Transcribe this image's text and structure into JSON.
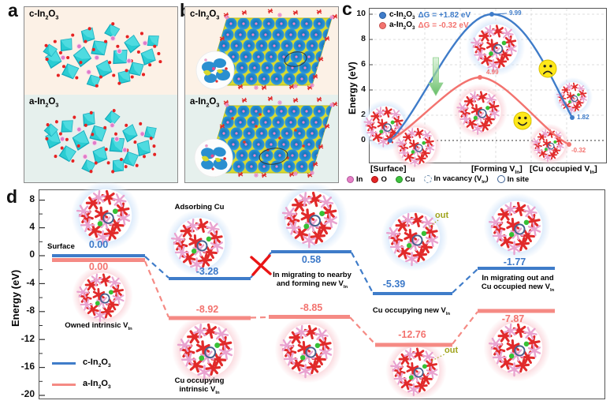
{
  "panels": {
    "a": {
      "tag": "a",
      "top_title_html": "c-In<sub>2</sub>O<sub>3</sub>",
      "bottom_title_html": "a-In<sub>2</sub>O<sub>3</sub>"
    },
    "b": {
      "tag": "b",
      "top_title_html": "c-In<sub>2</sub>O<sub>3</sub>",
      "bottom_title_html": "a-In<sub>2</sub>O<sub>3</sub>"
    },
    "c": {
      "tag": "c",
      "ylabel": "Energy (eV)",
      "yticks": [
        "10",
        "8",
        "6",
        "4",
        "2",
        "0"
      ],
      "legend": [
        {
          "name_html": "c-In<sub>2</sub>O<sub>3</sub>",
          "dg": "ΔG = +1.82 eV",
          "color": "#3f7cc9"
        },
        {
          "name_html": "a-In<sub>2</sub>O<sub>3</sub>",
          "dg": "ΔG = -0.32 eV",
          "color": "#f3736f"
        }
      ],
      "values": {
        "blue_peak": "9.99",
        "red_peak": "4.99",
        "blue_end": "1.82",
        "red_end": "-0.32"
      },
      "xlabels_html": [
        "[Surface]",
        "[Forming V<sub>In</sub>]",
        "[Cu occupied V<sub>In</sub>]"
      ],
      "atom_legend": [
        {
          "label_html": "In"
        },
        {
          "label_html": "O"
        },
        {
          "label_html": "Cu"
        },
        {
          "label_html": "In vacancy (V<sub>In</sub>)"
        },
        {
          "label_html": "In site"
        }
      ]
    },
    "d": {
      "tag": "d",
      "ylabel": "Energy (eV)",
      "yticks": [
        "8",
        "4",
        "0",
        "-4",
        "-8",
        "-12",
        "-16",
        "-20"
      ],
      "legend": [
        {
          "name_html": "c-In<sub>2</sub>O<sub>3</sub>",
          "color": "#3f7cc9"
        },
        {
          "name_html": "a-In<sub>2</sub>O<sub>3</sub>",
          "color": "#f58a84"
        }
      ],
      "blue": [
        "0.00",
        "-3.28",
        "0.58",
        "-5.39",
        "-1.77"
      ],
      "red": [
        "0.00",
        "-8.92",
        "-8.85",
        "-12.76",
        "-7.87"
      ],
      "labels": {
        "surface": "Surface",
        "owned_html": "Owned intrinsic V<sub>In</sub>",
        "adsorbing": "Adsorbing Cu",
        "cu_intrinsic_html": "Cu occupying<br>intrinsic V<sub>In</sub>",
        "in_migrating_html": "In migrating to nearby<br>and forming new V<sub>In</sub>",
        "cu_new_html": "Cu occupying new V<sub>In</sub>",
        "in_out_html": "In migrating out and<br>Cu occupied new V<sub>In</sub>",
        "out": "out"
      }
    }
  },
  "colors": {
    "c_in2o3_blue": "#3f7cc9",
    "a_in2o3_red": "#f3736f",
    "in_atom_pink": "#e57fc5",
    "o_atom_red": "#e42525",
    "cu_atom_green": "#3ec13e",
    "out_olive": "#9fa31b",
    "cream_bg": "#fcf1e6",
    "teal_bg": "#e6f0ed"
  },
  "chart_data": [
    {
      "type": "line",
      "panel": "c",
      "description": "Energy profile for forming In vacancy and Cu occupation",
      "categories": [
        "[Surface]",
        "[Forming VIn]",
        "[Cu occupied VIn]"
      ],
      "series": [
        {
          "name": "c-In2O3",
          "color": "#3f7cc9",
          "values": [
            0.0,
            9.99,
            1.82
          ],
          "barrier_eV": 9.99,
          "delta_G_eV": 1.82
        },
        {
          "name": "a-In2O3",
          "color": "#f3736f",
          "values": [
            0.0,
            4.99,
            -0.32
          ],
          "barrier_eV": 4.99,
          "delta_G_eV": -0.32
        }
      ],
      "ylabel": "Energy (eV)",
      "yticks": [
        0,
        2,
        4,
        6,
        8,
        10
      ],
      "ylim": [
        -1.6,
        10.8
      ],
      "grid": true,
      "legend_position": "top-left",
      "annotations": [
        "9.99",
        "4.99",
        "1.82",
        "-0.32",
        "ΔG = +1.82 eV",
        "ΔG = -0.32 eV"
      ]
    },
    {
      "type": "line",
      "panel": "d",
      "subtype": "stepped-energy-pathway",
      "ylabel": "Energy (eV)",
      "yticks": [
        8,
        4,
        0,
        -4,
        -8,
        -12,
        -16,
        -20
      ],
      "ylim": [
        -21,
        9
      ],
      "series": [
        {
          "name": "c-In2O3",
          "color": "#3f7cc9",
          "values": [
            0.0,
            -3.28,
            0.58,
            -5.39,
            -1.77
          ],
          "step_labels": [
            "Surface",
            "Adsorbing Cu",
            "In migrating to nearby and forming new VIn",
            "",
            "In migrating out and Cu occupied new VIn"
          ]
        },
        {
          "name": "a-In2O3",
          "color": "#f3736f",
          "values": [
            0.0,
            -8.92,
            -8.85,
            -12.76,
            -7.87
          ],
          "step_labels": [
            "Owned intrinsic VIn",
            "Cu occupying intrinsic VIn",
            "",
            "Cu occupying new VIn",
            ""
          ]
        }
      ],
      "legend_position": "bottom-left"
    }
  ]
}
